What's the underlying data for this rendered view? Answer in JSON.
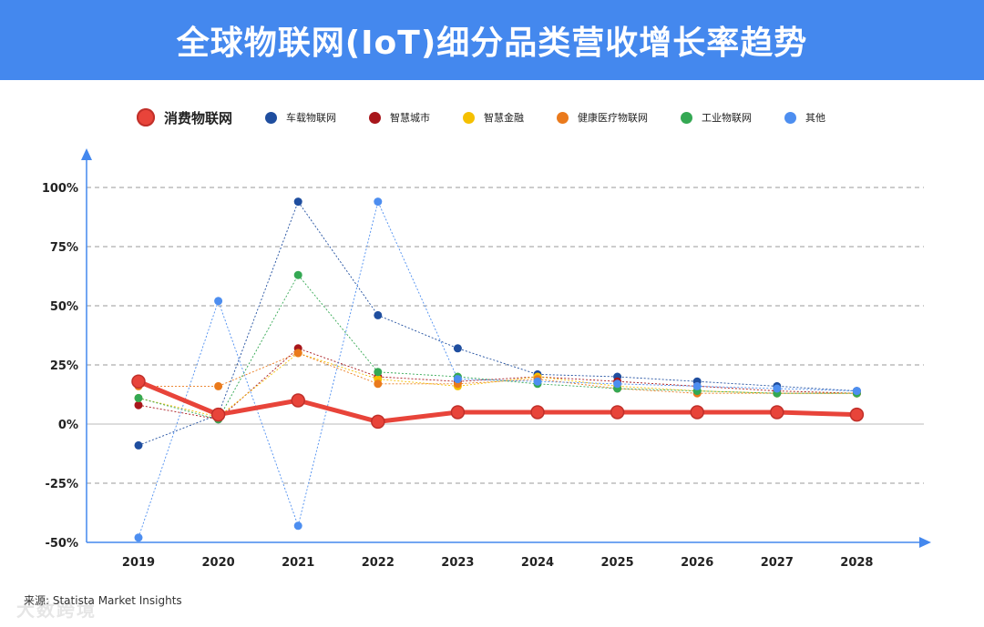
{
  "title": "全球物联网(IoT)细分品类营收增长率趋势",
  "source": "来源: Statista Market Insights",
  "watermark": "大数跨境",
  "colors": {
    "header_bg": "#4488ee",
    "axis": "#4488ee",
    "grid": "#999999"
  },
  "chart_data": {
    "type": "line",
    "title": "全球物联网(IoT)细分品类营收增长率趋势",
    "xlabel": "",
    "ylabel": "",
    "x": [
      "2019",
      "2020",
      "2021",
      "2022",
      "2023",
      "2024",
      "2025",
      "2026",
      "2027",
      "2028"
    ],
    "ylim": [
      -50,
      100
    ],
    "yticks": [
      -50,
      -25,
      0,
      25,
      50,
      75,
      100
    ],
    "ytick_labels": [
      "-50%",
      "-25%",
      "0%",
      "25%",
      "50%",
      "75%",
      "100%"
    ],
    "legend_position": "top",
    "grid": true,
    "series": [
      {
        "name": "车载物联网",
        "color": "#1f4e9f",
        "values": [
          -9,
          4,
          94,
          46,
          32,
          21,
          20,
          18,
          16,
          14
        ]
      },
      {
        "name": "智慧城市",
        "color": "#a8161b",
        "values": [
          8,
          2,
          32,
          20,
          18,
          20,
          18,
          16,
          14,
          13
        ]
      },
      {
        "name": "智慧金融",
        "color": "#f5c000",
        "values": [
          11,
          3,
          30,
          19,
          16,
          20,
          16,
          14,
          13,
          13
        ]
      },
      {
        "name": "健康医疗物联网",
        "color": "#ea7a1c",
        "values": [
          16,
          16,
          30,
          17,
          17,
          19,
          15,
          13,
          13,
          13
        ]
      },
      {
        "name": "工业物联网",
        "color": "#34a853",
        "values": [
          11,
          2,
          63,
          22,
          20,
          17,
          15,
          14,
          13,
          13
        ]
      },
      {
        "name": "其他",
        "color": "#4d8ef0",
        "values": [
          -48,
          52,
          -43,
          94,
          19,
          18,
          17,
          16,
          15,
          14
        ]
      },
      {
        "name": "消费物联网",
        "color": "#e8443a",
        "primary": true,
        "values": [
          18,
          4,
          10,
          1,
          5,
          5,
          5,
          5,
          5,
          4
        ]
      }
    ]
  }
}
